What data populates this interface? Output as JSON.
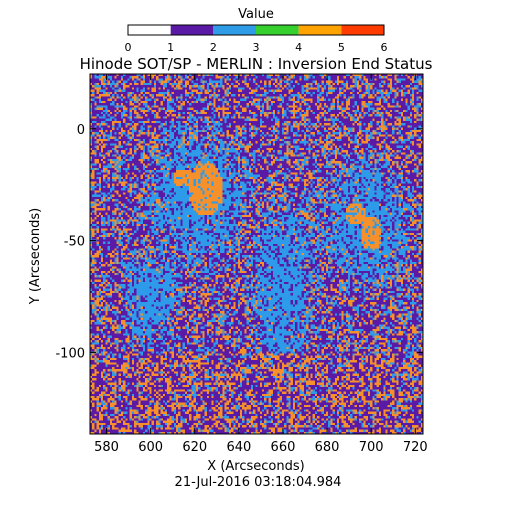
{
  "chart_data": {
    "type": "heatmap",
    "title": "Hinode SOT/SP - MERLIN : Inversion End Status",
    "xlabel": "X (Arcseconds)",
    "ylabel": "Y (Arcseconds)",
    "timestamp": "21-Jul-2016 03:18:04.984",
    "xlim": [
      572.5,
      723.5
    ],
    "ylim": [
      -136.5,
      24.5
    ],
    "x_ticks": [
      580,
      600,
      620,
      640,
      660,
      680,
      700,
      720
    ],
    "y_ticks": [
      0,
      -50,
      -100
    ],
    "colorbar": {
      "label": "Value",
      "range": [
        0,
        6
      ],
      "ticks": [
        0,
        1,
        2,
        3,
        4,
        5,
        6
      ],
      "bands": [
        {
          "from": 0,
          "to": 1,
          "color": "#ffffff"
        },
        {
          "from": 1,
          "to": 2,
          "color": "#5a1aa6"
        },
        {
          "from": 2,
          "to": 3,
          "color": "#2f9ce8"
        },
        {
          "from": 3,
          "to": 4,
          "color": "#36d02e"
        },
        {
          "from": 4,
          "to": 5,
          "color": "#ffa300"
        },
        {
          "from": 5,
          "to": 6,
          "color": "#ff3b00"
        }
      ]
    },
    "value_colors": {
      "1": "#5a1aa6",
      "2": "#2e9bea",
      "4": "#f5902a"
    },
    "regions": [
      {
        "status": 4,
        "shape": "ellipse",
        "cx": 625,
        "cy": -27,
        "rx": 8,
        "ry": 12
      },
      {
        "status": 4,
        "shape": "ellipse",
        "cx": 615,
        "cy": -22,
        "rx": 5,
        "ry": 4
      },
      {
        "status": 4,
        "shape": "ellipse",
        "cx": 700,
        "cy": -47,
        "rx": 5,
        "ry": 8
      },
      {
        "status": 4,
        "shape": "ellipse",
        "cx": 693,
        "cy": -38,
        "rx": 5,
        "ry": 5
      },
      {
        "status": 2,
        "shape": "ellipse",
        "cx": 622,
        "cy": -30,
        "rx": 28,
        "ry": 38
      },
      {
        "status": 2,
        "shape": "ellipse",
        "cx": 697,
        "cy": -42,
        "rx": 25,
        "ry": 35
      },
      {
        "status": 2,
        "shape": "ellipse",
        "cx": 660,
        "cy": -70,
        "rx": 18,
        "ry": 45
      },
      {
        "status": 2,
        "shape": "ellipse",
        "cx": 600,
        "cy": -75,
        "rx": 15,
        "ry": 25
      }
    ]
  }
}
